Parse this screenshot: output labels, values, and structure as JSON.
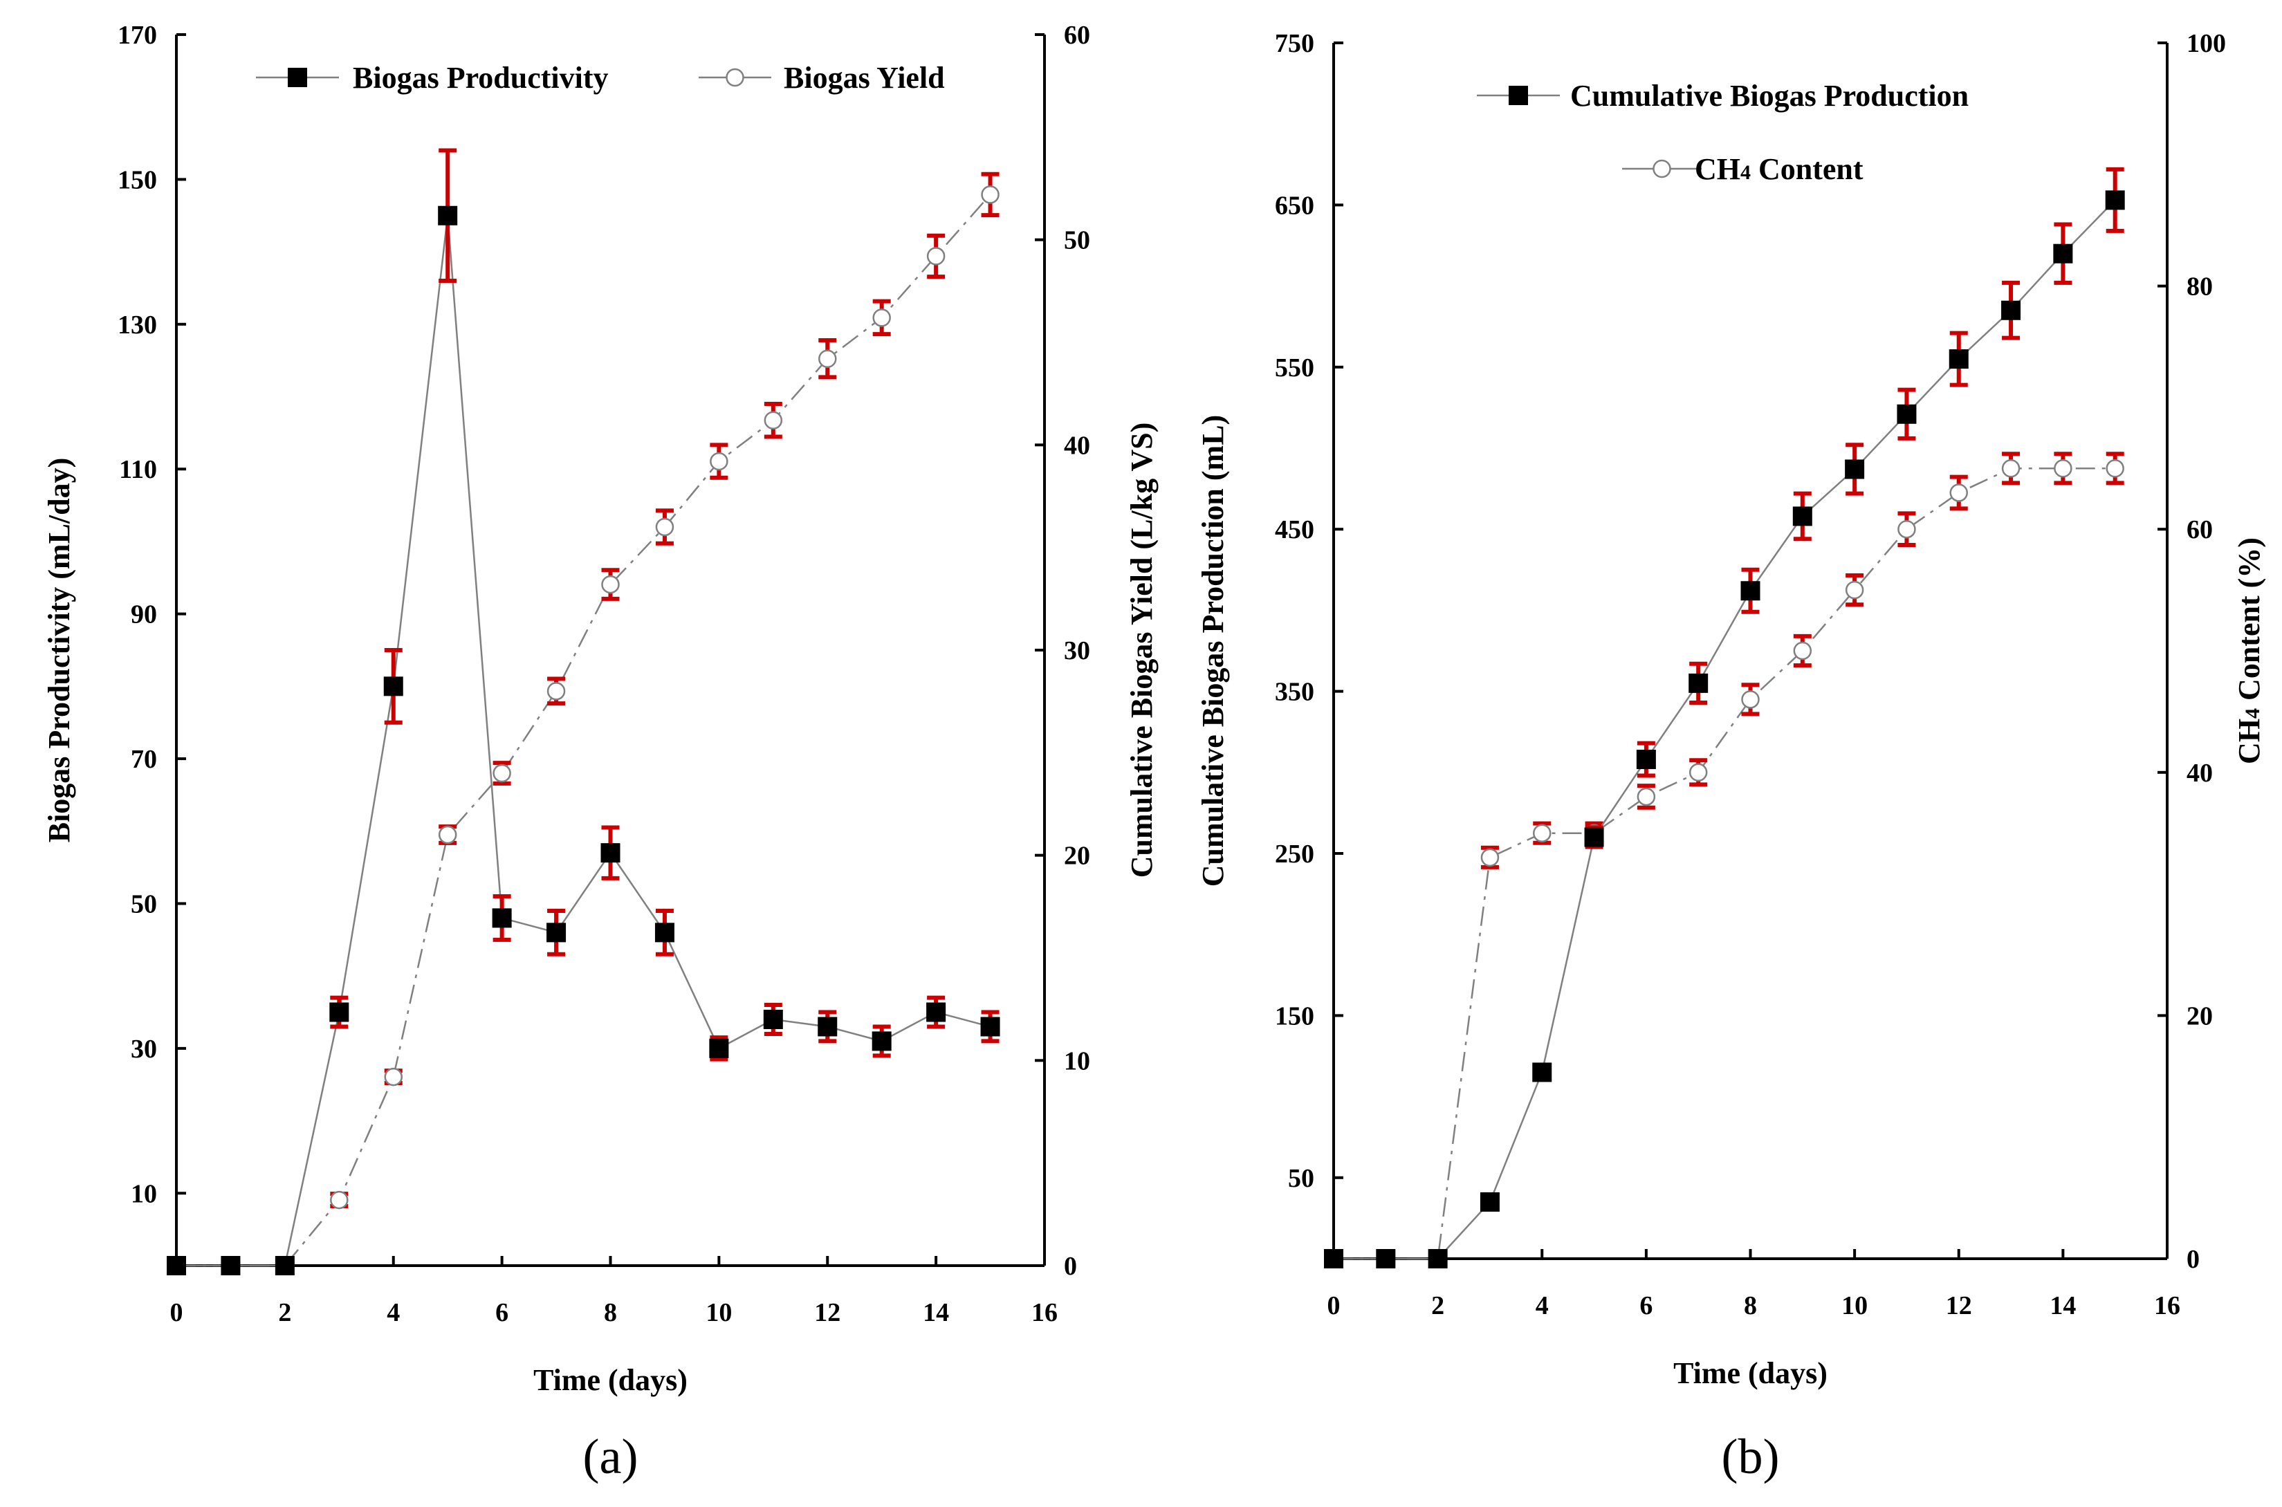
{
  "colors": {
    "errorbar": "#cc0000",
    "line": "#808080",
    "marker": "#000000",
    "axis": "#000000"
  },
  "chart_data": [
    {
      "panel_label": "(a)",
      "type": "line",
      "xlabel": "Time (days)",
      "ylabel_left": "Biogas Productivity (mL/day)",
      "ylabel_right": "Cumulative Biogas Yield (L/kg VS)",
      "xlim": [
        0,
        16
      ],
      "ylim_left": [
        0,
        170
      ],
      "ylim_right": [
        0,
        60
      ],
      "xticks": [
        0,
        2,
        4,
        6,
        8,
        10,
        12,
        14,
        16
      ],
      "xtick_labels": [
        "0",
        "2",
        "4",
        "6",
        "8",
        "10",
        "12",
        "14",
        "16"
      ],
      "yticks_left": [
        10,
        30,
        50,
        70,
        90,
        110,
        130,
        150,
        170
      ],
      "ytick_labels_left": [
        "10",
        "30",
        "50",
        "70",
        "90",
        "110",
        "130",
        "150",
        "170"
      ],
      "yticks_right": [
        0,
        10,
        20,
        30,
        40,
        50,
        60
      ],
      "ytick_labels_right": [
        "0",
        "10",
        "20",
        "30",
        "40",
        "50",
        "60"
      ],
      "legend_position": "top",
      "series": [
        {
          "name": "Biogas Productivity",
          "axis": "left",
          "marker": "filled-square",
          "linestyle": "solid",
          "x": [
            0,
            1,
            2,
            3,
            4,
            5,
            6,
            7,
            8,
            9,
            10,
            11,
            12,
            13,
            14,
            15
          ],
          "values": [
            0,
            0,
            0,
            35,
            80,
            145,
            48,
            46,
            57,
            46,
            30,
            34,
            33,
            31,
            35,
            33
          ],
          "errors": [
            0,
            0,
            0,
            2,
            5,
            9,
            3,
            3,
            3.5,
            3,
            1.5,
            2,
            2,
            2,
            2,
            2
          ]
        },
        {
          "name": "Biogas Yield",
          "axis": "right",
          "marker": "open-circle",
          "linestyle": "dashdot",
          "x": [
            0,
            1,
            2,
            3,
            4,
            5,
            6,
            7,
            8,
            9,
            10,
            11,
            12,
            13,
            14,
            15
          ],
          "values": [
            0,
            0,
            0,
            3.2,
            9.2,
            21,
            24,
            28,
            33.2,
            36,
            39.2,
            41.2,
            44.2,
            46.2,
            49.2,
            52.2
          ],
          "errors": [
            0,
            0,
            0,
            0.3,
            0.3,
            0.4,
            0.5,
            0.6,
            0.7,
            0.8,
            0.8,
            0.8,
            0.9,
            0.8,
            1,
            1
          ]
        }
      ]
    },
    {
      "panel_label": "(b)",
      "type": "line",
      "xlabel": "Time (days)",
      "ylabel_left": "Cumulative Biogas Production (mL)",
      "ylabel_right": "CH4 Content (%)",
      "ylabel_right_parts": [
        "CH",
        "4",
        " Content (%)"
      ],
      "xlim": [
        0,
        16
      ],
      "ylim_left": [
        0,
        750
      ],
      "ylim_right": [
        0,
        100
      ],
      "xticks": [
        0,
        2,
        4,
        6,
        8,
        10,
        12,
        14,
        16
      ],
      "xtick_labels": [
        "0",
        "2",
        "4",
        "6",
        "8",
        "10",
        "12",
        "14",
        "16"
      ],
      "yticks_left": [
        50,
        150,
        250,
        350,
        450,
        550,
        650,
        750
      ],
      "ytick_labels_left": [
        "50",
        "150",
        "250",
        "350",
        "450",
        "550",
        "650",
        "750"
      ],
      "yticks_right": [
        0,
        20,
        40,
        60,
        80,
        100
      ],
      "ytick_labels_right": [
        "0",
        "20",
        "40",
        "60",
        "80",
        "100"
      ],
      "legend_position": "top",
      "series": [
        {
          "name": "Cumulative Biogas Production",
          "axis": "left",
          "marker": "filled-square",
          "linestyle": "solid",
          "x": [
            0,
            1,
            2,
            3,
            4,
            5,
            6,
            7,
            8,
            9,
            10,
            11,
            12,
            13,
            14,
            15
          ],
          "values": [
            0,
            0,
            0,
            35,
            115,
            260,
            308,
            355,
            412,
            458,
            487,
            521,
            555,
            585,
            620,
            653
          ],
          "errors": [
            0,
            0,
            0,
            0,
            0,
            6,
            10,
            12,
            13,
            14,
            15,
            15,
            16,
            17,
            18,
            19
          ]
        },
        {
          "name": "CH4 Content",
          "name_parts": [
            "CH",
            "4",
            " Content"
          ],
          "axis": "right",
          "marker": "open-circle",
          "linestyle": "dashdot",
          "x": [
            0,
            1,
            2,
            3,
            4,
            5,
            6,
            7,
            8,
            9,
            10,
            11,
            12,
            13,
            14,
            15
          ],
          "values": [
            0,
            0,
            0,
            33,
            35,
            35,
            38,
            40,
            46,
            50,
            55,
            60,
            63,
            65,
            65,
            65
          ],
          "errors": [
            0,
            0,
            0,
            0.8,
            0.8,
            0.8,
            0.9,
            1,
            1.2,
            1.2,
            1.2,
            1.3,
            1.3,
            1.2,
            1.2,
            1.2
          ]
        }
      ]
    }
  ]
}
